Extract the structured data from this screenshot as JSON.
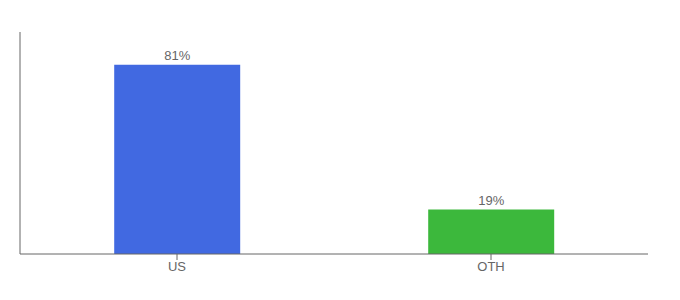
{
  "chart_data": {
    "type": "bar",
    "categories": [
      "US",
      "OTH"
    ],
    "values": [
      81,
      19
    ],
    "colors": [
      "#4169e1",
      "#3cb83c"
    ],
    "value_labels": [
      "81%",
      "19%"
    ],
    "data_labels": true,
    "ylim": [
      0,
      95
    ],
    "tick_labels": "x",
    "grid": false
  }
}
